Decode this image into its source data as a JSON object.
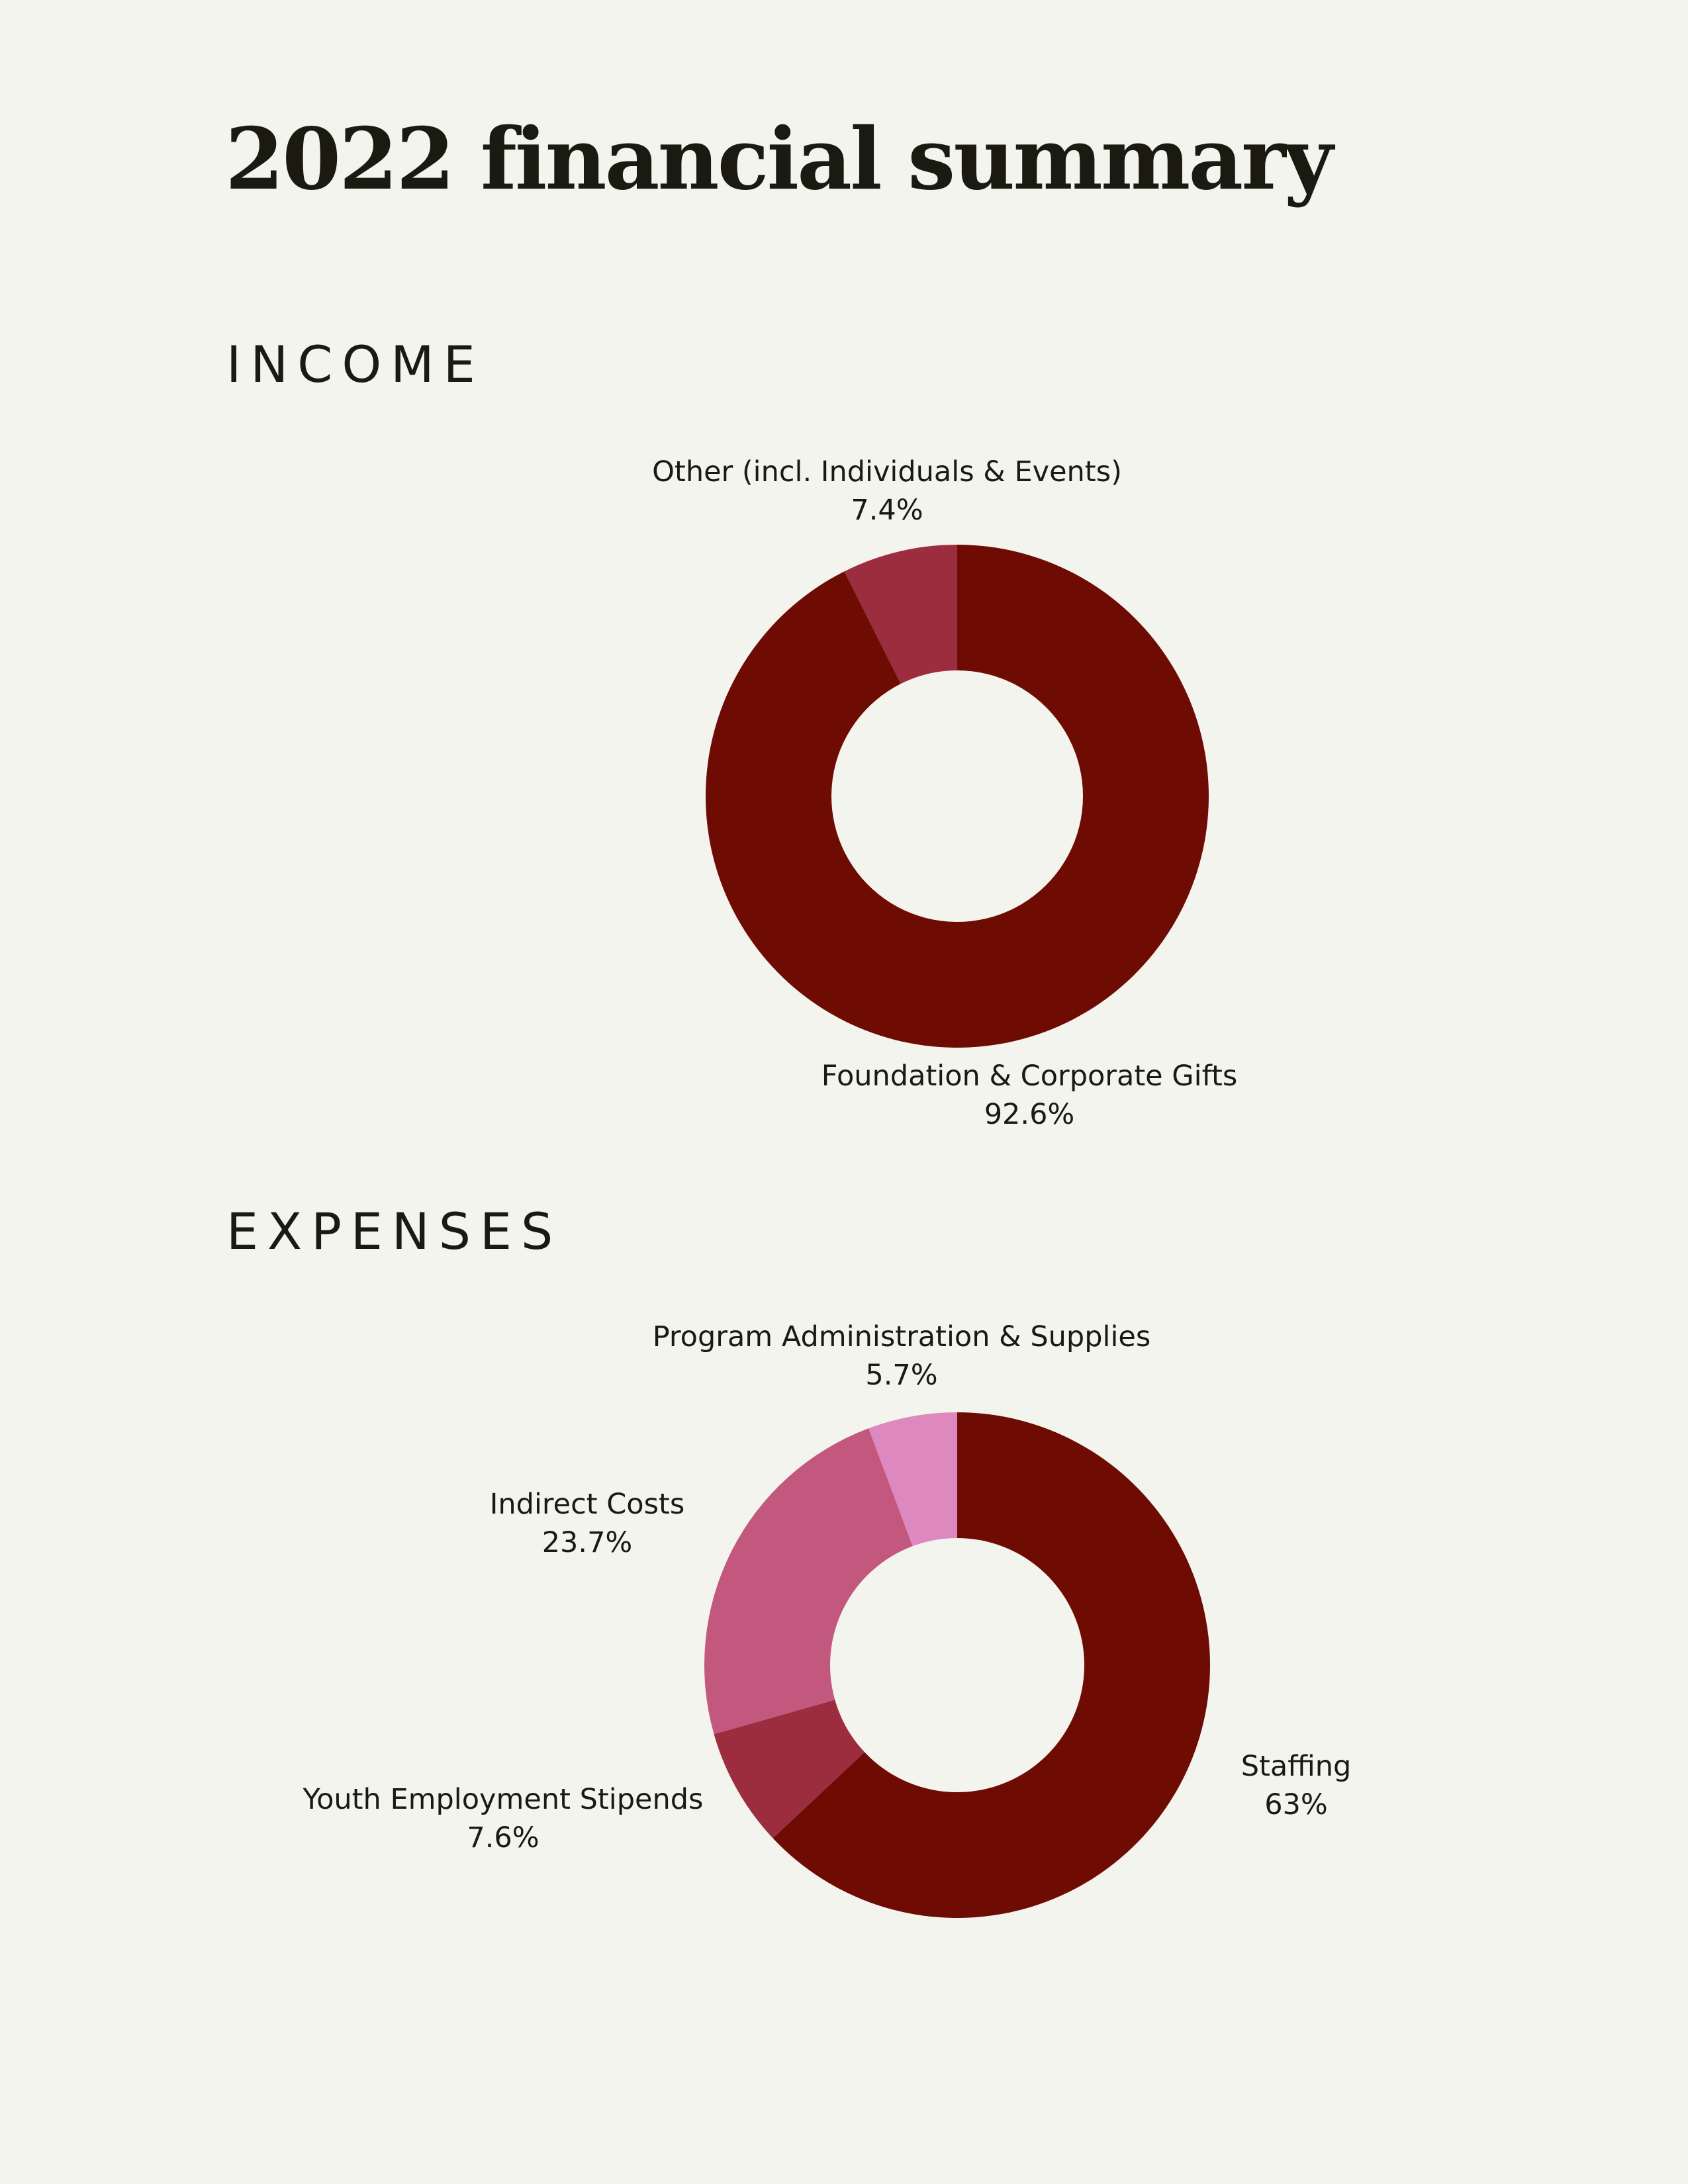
{
  "title": "2022 financial summary",
  "colors": {
    "background": "#f4f4ef",
    "text": "#1a1a10",
    "dark_red": "#6e0c03",
    "medium_red": "#9c2d3e",
    "rose": "#c2587d",
    "pink": "#de88c0"
  },
  "chart_data": [
    {
      "type": "pie",
      "style": "donut",
      "title": "INCOME",
      "slices": [
        {
          "label": "Foundation & Corporate Gifts",
          "value": 92.6,
          "value_label": "92.6%",
          "color": "#6e0c03"
        },
        {
          "label": "Other (incl. Individuals & Events)",
          "value": 7.4,
          "value_label": "7.4%",
          "color": "#9c2d3e"
        }
      ]
    },
    {
      "type": "pie",
      "style": "donut",
      "title": "EXPENSES",
      "slices": [
        {
          "label": "Staffing",
          "value": 63,
          "value_label": "63%",
          "color": "#6e0c03"
        },
        {
          "label": "Youth Employment Stipends",
          "value": 7.6,
          "value_label": "7.6%",
          "color": "#9c2d3e"
        },
        {
          "label": "Indirect Costs",
          "value": 23.7,
          "value_label": "23.7%",
          "color": "#c2587d"
        },
        {
          "label": "Program Administration & Supplies",
          "value": 5.7,
          "value_label": "5.7%",
          "color": "#de88c0"
        }
      ]
    }
  ]
}
